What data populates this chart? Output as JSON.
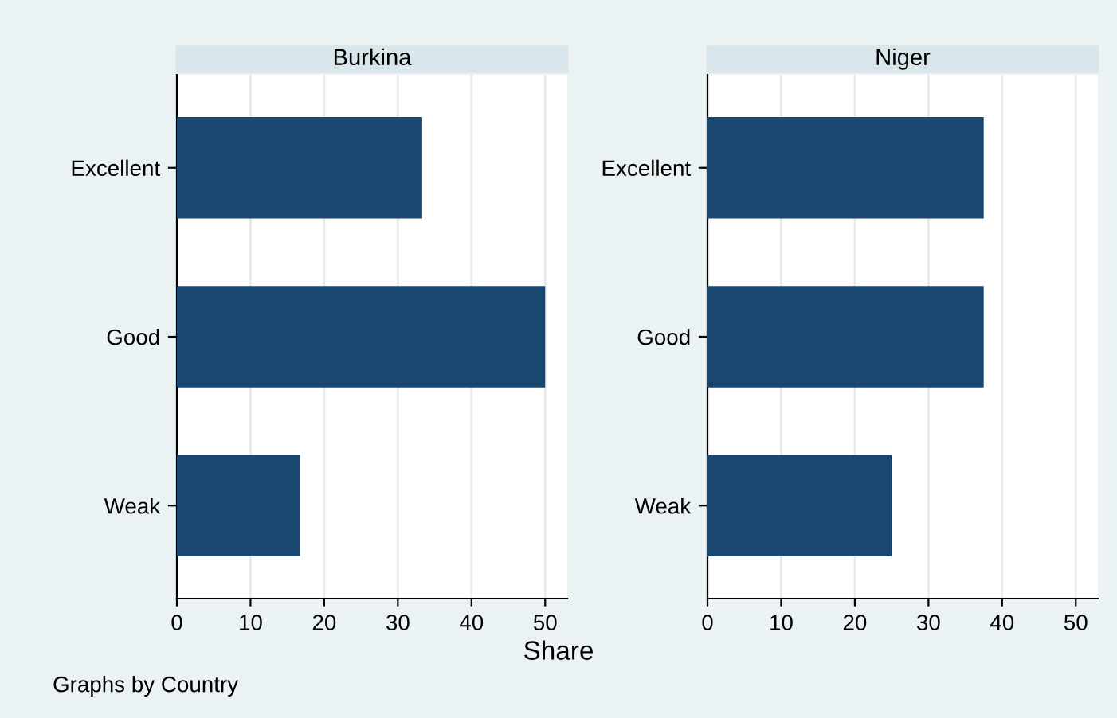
{
  "chart_data": [
    {
      "type": "bar",
      "orientation": "horizontal",
      "title": "Burkina",
      "xlabel": "Share",
      "categories": [
        "Excellent",
        "Good",
        "Weak"
      ],
      "values": [
        33.3,
        50,
        16.7
      ],
      "color": "#1a476f",
      "xlim": [
        0,
        53
      ],
      "xticks": [
        0,
        10,
        20,
        30,
        40,
        50
      ],
      "grid": "x",
      "annotations": [
        "Graphs by Country"
      ]
    },
    {
      "type": "bar",
      "orientation": "horizontal",
      "title": "Niger",
      "categories": [
        "Excellent",
        "Good",
        "Weak"
      ],
      "values": [
        37.5,
        37.5,
        25
      ],
      "color": "#1a476f",
      "xlim": [
        0,
        53
      ],
      "xticks": [
        0,
        10,
        20,
        30,
        40,
        50
      ],
      "grid": "x"
    }
  ]
}
